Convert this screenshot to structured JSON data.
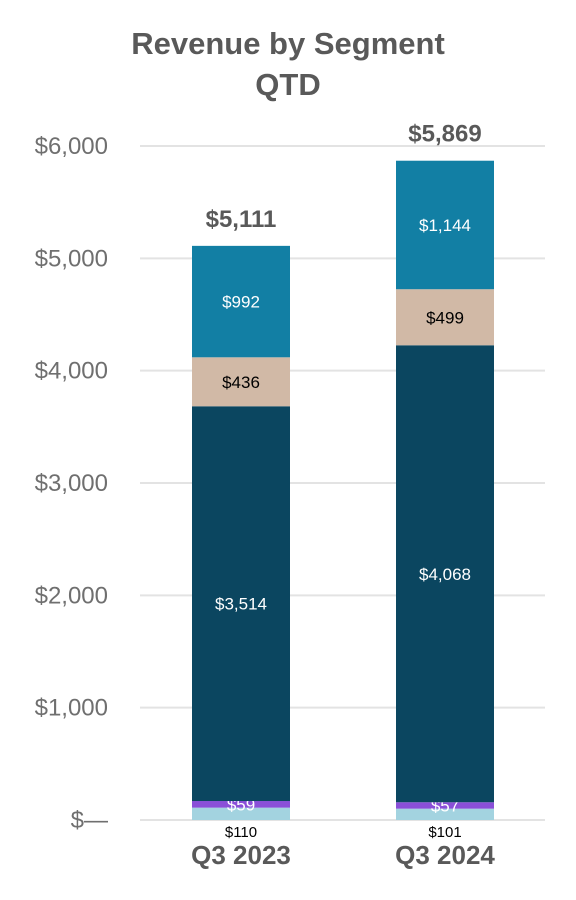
{
  "chart_data": {
    "type": "bar",
    "stacked": true,
    "title_lines": [
      "Revenue by Segment",
      "QTD"
    ],
    "categories": [
      "Q3 2023",
      "Q3 2024"
    ],
    "y_ticks": [
      "$—",
      "$1,000",
      "$2,000",
      "$3,000",
      "$4,000",
      "$5,000",
      "$6,000"
    ],
    "ylim": [
      0,
      6000
    ],
    "grid": true,
    "totals": [
      5111,
      5869
    ],
    "total_labels": [
      "$5,111",
      "$5,869"
    ],
    "series": [
      {
        "values": [
          110,
          101
        ],
        "labels": [
          "$110",
          "$101"
        ],
        "color": "#a3d3e0",
        "label_color": "#000000",
        "label_position": "below"
      },
      {
        "values": [
          59,
          57
        ],
        "labels": [
          "$59",
          "$57"
        ],
        "color": "#8a4fd8",
        "label_color": "#ffffff",
        "label_position": "inside"
      },
      {
        "values": [
          3514,
          4068
        ],
        "labels": [
          "$3,514",
          "$4,068"
        ],
        "color": "#0b4660",
        "label_color": "#ffffff",
        "label_position": "inside"
      },
      {
        "values": [
          436,
          499
        ],
        "labels": [
          "$436",
          "$499"
        ],
        "color": "#d1b9a6",
        "label_color": "#000000",
        "label_position": "inside"
      },
      {
        "values": [
          992,
          1144
        ],
        "labels": [
          "$992",
          "$1,144"
        ],
        "color": "#127fa4",
        "label_color": "#ffffff",
        "label_position": "inside"
      }
    ]
  }
}
